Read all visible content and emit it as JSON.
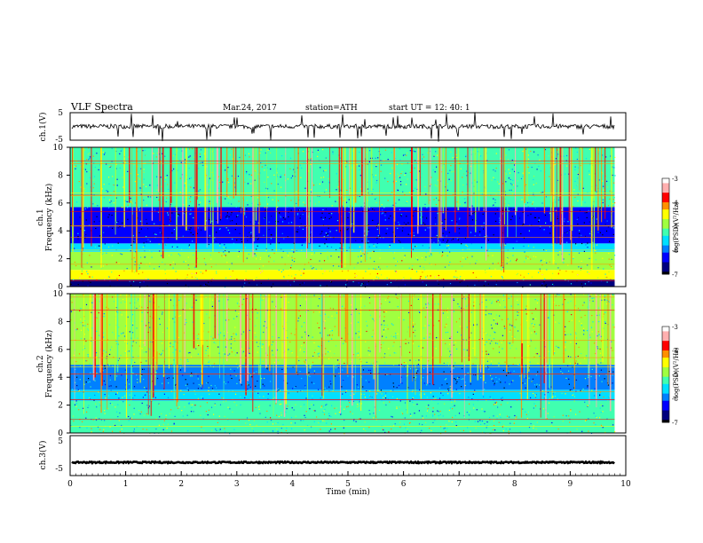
{
  "header": {
    "title": "VLF  Spectra",
    "date": "Mar.24, 2017",
    "station": "station=ATH",
    "start": "start  UT  =    12: 40: 1"
  },
  "colors": {
    "colormap": [
      "#000000",
      "#00007f",
      "#0000ff",
      "#0080ff",
      "#00e0ff",
      "#40ffb0",
      "#a0ff40",
      "#ffff00",
      "#ff9000",
      "#ff0000",
      "#ffb0b0",
      "#ffffff"
    ],
    "trace": "#000000"
  },
  "chart_data": [
    {
      "type": "line",
      "name_label": "ch.1(V)",
      "ylim": [
        -5,
        5
      ],
      "yticks": [
        "5",
        "-5"
      ],
      "xlim": [
        0,
        10
      ],
      "baseline": 0,
      "description": "noisy waveform near 0 V with sporadic spikes"
    },
    {
      "type": "heatmap",
      "ylabel_lines": [
        "ch.1",
        "Frequency  (kHz)"
      ],
      "ylim": [
        0,
        10
      ],
      "yticks": [
        "0",
        "2",
        "4",
        "6",
        "8",
        "10"
      ],
      "xlim": [
        0,
        9.8
      ],
      "colorbar": {
        "label": "log(PSD)(V²/Hz)",
        "range": [
          -7,
          -3
        ],
        "ticks": [
          "-3",
          "-4",
          "-5",
          "-6",
          "-7"
        ]
      },
      "bands_khz": [
        {
          "from": 0,
          "to": 0.5,
          "level": -6.5
        },
        {
          "from": 0.5,
          "to": 1.2,
          "level": -4.4
        },
        {
          "from": 1.2,
          "to": 2.5,
          "level": -5.0
        },
        {
          "from": 2.5,
          "to": 3.1,
          "level": -5.6
        },
        {
          "from": 3.1,
          "to": 5.7,
          "level": -6.4
        },
        {
          "from": 5.7,
          "to": 10,
          "level": -5.2
        }
      ]
    },
    {
      "type": "heatmap",
      "ylabel_lines": [
        "ch.2",
        "Frequency  (kHz)"
      ],
      "ylim": [
        0,
        10
      ],
      "yticks": [
        "0",
        "2",
        "4",
        "6",
        "8",
        "10"
      ],
      "xlim": [
        0,
        9.8
      ],
      "colorbar": {
        "label": "log(PSD)(V²/Hz)",
        "range": [
          -7,
          -3
        ],
        "ticks": [
          "-3",
          "-4",
          "-5",
          "-6",
          "-7"
        ]
      },
      "bands_khz": [
        {
          "from": 0,
          "to": 2.3,
          "level": -5.1
        },
        {
          "from": 2.3,
          "to": 3.1,
          "level": -5.4
        },
        {
          "from": 3.1,
          "to": 4.9,
          "level": -6.0
        },
        {
          "from": 4.9,
          "to": 10,
          "level": -5.0
        }
      ]
    },
    {
      "type": "line",
      "name_label": "ch.3(V)",
      "ylim": [
        -5,
        5
      ],
      "yticks": [
        "5",
        "-5"
      ],
      "xlim": [
        0,
        10
      ],
      "baseline": -1.7,
      "description": "thick near-constant trace"
    }
  ],
  "xaxis": {
    "label": "Time  (min)",
    "ticks": [
      "0",
      "1",
      "2",
      "3",
      "4",
      "5",
      "6",
      "7",
      "8",
      "9",
      "10"
    ],
    "range": [
      0,
      10
    ]
  }
}
